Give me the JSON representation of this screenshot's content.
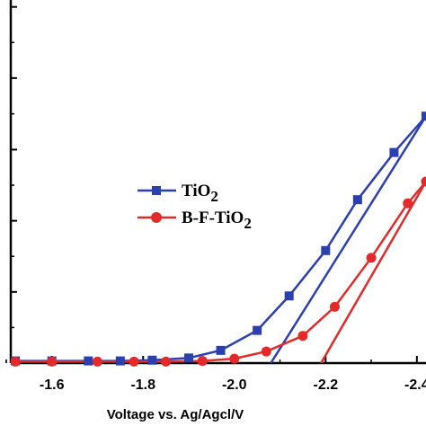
{
  "chart_data": {
    "type": "line",
    "xlabel": "Voltage vs. Ag/Agcl/V",
    "ylabel": "",
    "xlim": [
      -1.51,
      -2.42
    ],
    "ylim": [
      0,
      1
    ],
    "x_ticks": [
      -1.6,
      -1.8,
      -2.0,
      -2.2,
      -2.4
    ],
    "x_tick_labels": [
      "-1.6",
      "-1.8",
      "-2.0",
      "-2.2",
      "-2.4"
    ],
    "y_ticks": [
      0,
      0.196,
      0.392,
      0.588,
      0.785,
      0.981
    ],
    "grid": false,
    "legend_position": "center-left",
    "series": [
      {
        "name": "TiO2",
        "name_main": "TiO",
        "name_sub": "2",
        "color": "#2c3fae",
        "marker": "square",
        "points": [
          [
            -1.52,
            0.006
          ],
          [
            -1.6,
            0.006
          ],
          [
            -1.68,
            0.006
          ],
          [
            -1.75,
            0.006
          ],
          [
            -1.82,
            0.008
          ],
          [
            -1.9,
            0.014
          ],
          [
            -1.97,
            0.035
          ],
          [
            -2.05,
            0.09
          ],
          [
            -2.12,
            0.185
          ],
          [
            -2.2,
            0.31
          ],
          [
            -2.27,
            0.45
          ],
          [
            -2.35,
            0.58
          ],
          [
            -2.42,
            0.68
          ]
        ],
        "fit_line": [
          [
            -2.08,
            0.0
          ],
          [
            -2.42,
            0.68
          ]
        ]
      },
      {
        "name": "B-F-TiO2",
        "name_main": "B-F-TiO",
        "name_sub": "2",
        "color": "#e32a2a",
        "marker": "circle",
        "points": [
          [
            -1.52,
            0.004
          ],
          [
            -1.6,
            0.004
          ],
          [
            -1.7,
            0.004
          ],
          [
            -1.78,
            0.004
          ],
          [
            -1.85,
            0.004
          ],
          [
            -1.93,
            0.006
          ],
          [
            -2.0,
            0.012
          ],
          [
            -2.07,
            0.032
          ],
          [
            -2.15,
            0.075
          ],
          [
            -2.22,
            0.155
          ],
          [
            -2.3,
            0.29
          ],
          [
            -2.38,
            0.44
          ],
          [
            -2.42,
            0.5
          ]
        ],
        "fit_line": [
          [
            -2.19,
            0.0
          ],
          [
            -2.42,
            0.5
          ]
        ]
      }
    ]
  }
}
